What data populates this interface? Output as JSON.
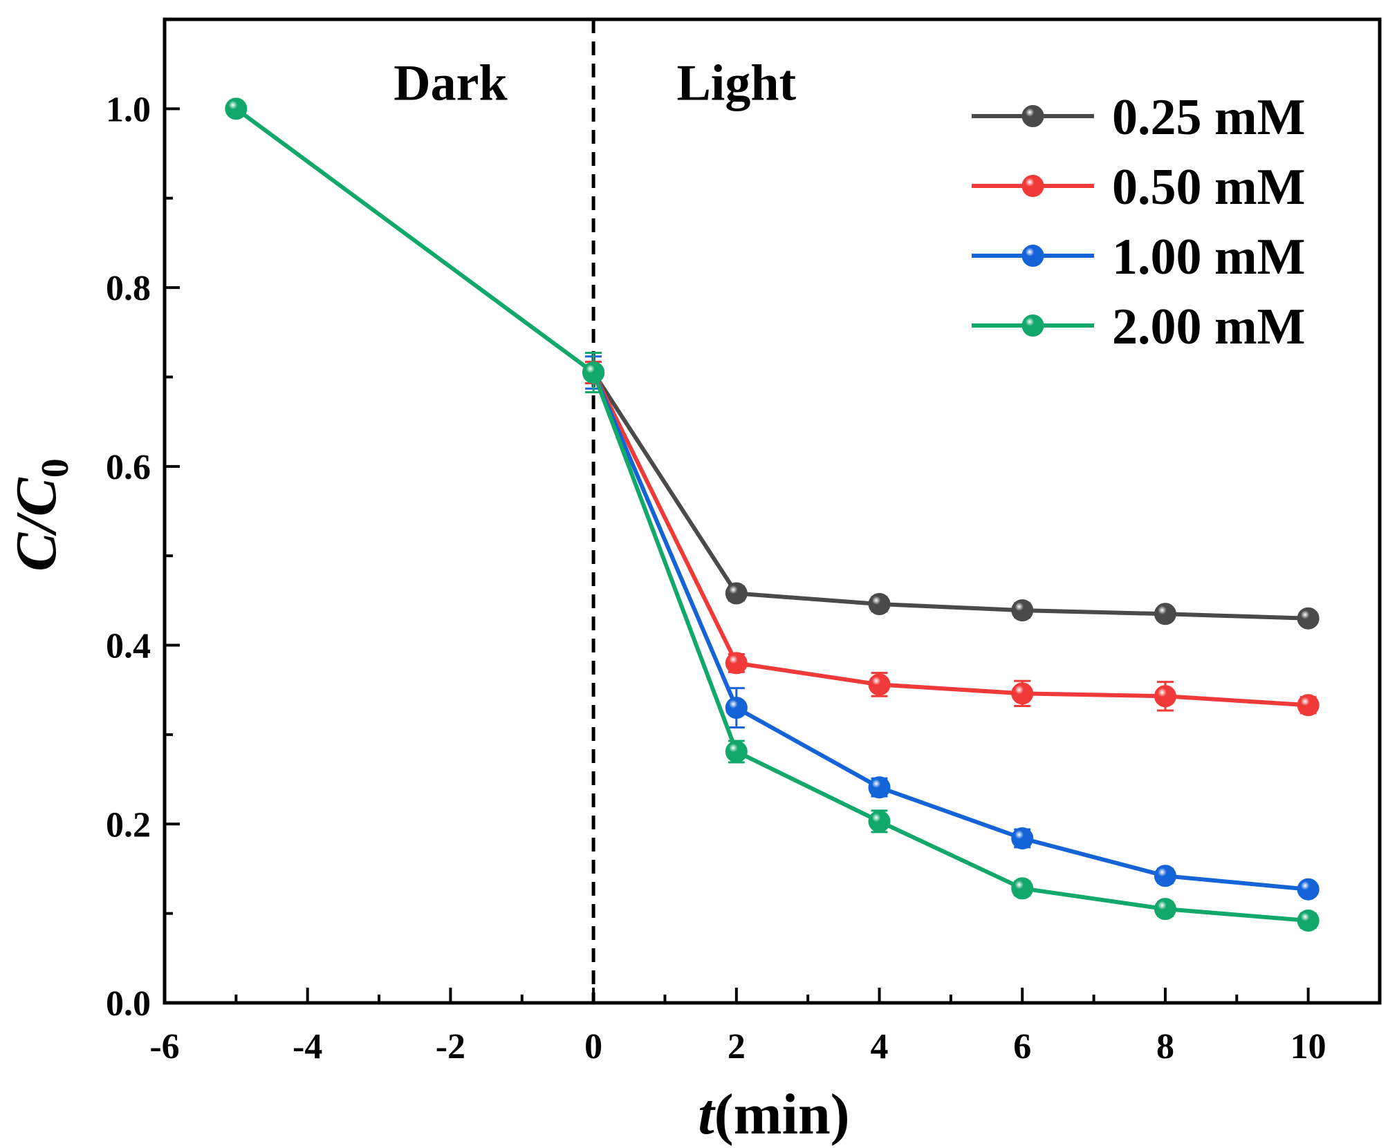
{
  "chart_data": {
    "type": "line",
    "xlabel": {
      "italic": "t",
      "rest": "(min)"
    },
    "ylabel": {
      "main": "C/C",
      "sub": "0"
    },
    "xlim": [
      -6,
      11
    ],
    "ylim": [
      0.0,
      1.1
    ],
    "xticks": [
      -6,
      -4,
      -2,
      0,
      2,
      4,
      6,
      8,
      10
    ],
    "xtick_labels": [
      "-6",
      "-4",
      "-2",
      "0",
      "2",
      "4",
      "6",
      "8",
      "10"
    ],
    "yticks": [
      0.0,
      0.2,
      0.4,
      0.6,
      0.8,
      1.0
    ],
    "ytick_labels": [
      "0.0",
      "0.2",
      "0.4",
      "0.6",
      "0.8",
      "1.0"
    ],
    "annotations": [
      {
        "text": "Dark",
        "x": -2.0,
        "y": 1.03
      },
      {
        "text": "Light",
        "x": 2.0,
        "y": 1.03
      }
    ],
    "divider_x": 0,
    "legend_position": "top-right",
    "grid": false,
    "series": [
      {
        "name": "0.25 mM",
        "color": "#4a4a4a",
        "x": [
          0,
          2,
          4,
          6,
          8,
          10
        ],
        "y": [
          0.705,
          0.458,
          0.446,
          0.439,
          0.435,
          0.43
        ],
        "err": [
          0.012,
          0.008,
          0.008,
          0.008,
          0.007,
          0.007
        ]
      },
      {
        "name": "0.50 mM",
        "color": "#f03a3a",
        "x": [
          0,
          2,
          4,
          6,
          8,
          10
        ],
        "y": [
          0.705,
          0.38,
          0.356,
          0.346,
          0.343,
          0.333
        ],
        "err": [
          0.012,
          0.01,
          0.013,
          0.014,
          0.016,
          0.009
        ]
      },
      {
        "name": "1.00 mM",
        "color": "#1464d8",
        "x": [
          0,
          2,
          4,
          6,
          8,
          10
        ],
        "y": [
          0.705,
          0.33,
          0.241,
          0.184,
          0.142,
          0.127
        ],
        "err": [
          0.018,
          0.022,
          0.01,
          0.01,
          0.008,
          0.007
        ]
      },
      {
        "name": "2.00 mM",
        "color": "#12a86a",
        "x": [
          -5,
          0,
          2,
          4,
          6,
          8,
          10
        ],
        "y": [
          1.0,
          0.705,
          0.281,
          0.203,
          0.128,
          0.105,
          0.092
        ],
        "err": [
          0.0,
          0.022,
          0.012,
          0.012,
          0.008,
          0.008,
          0.008
        ]
      }
    ]
  }
}
